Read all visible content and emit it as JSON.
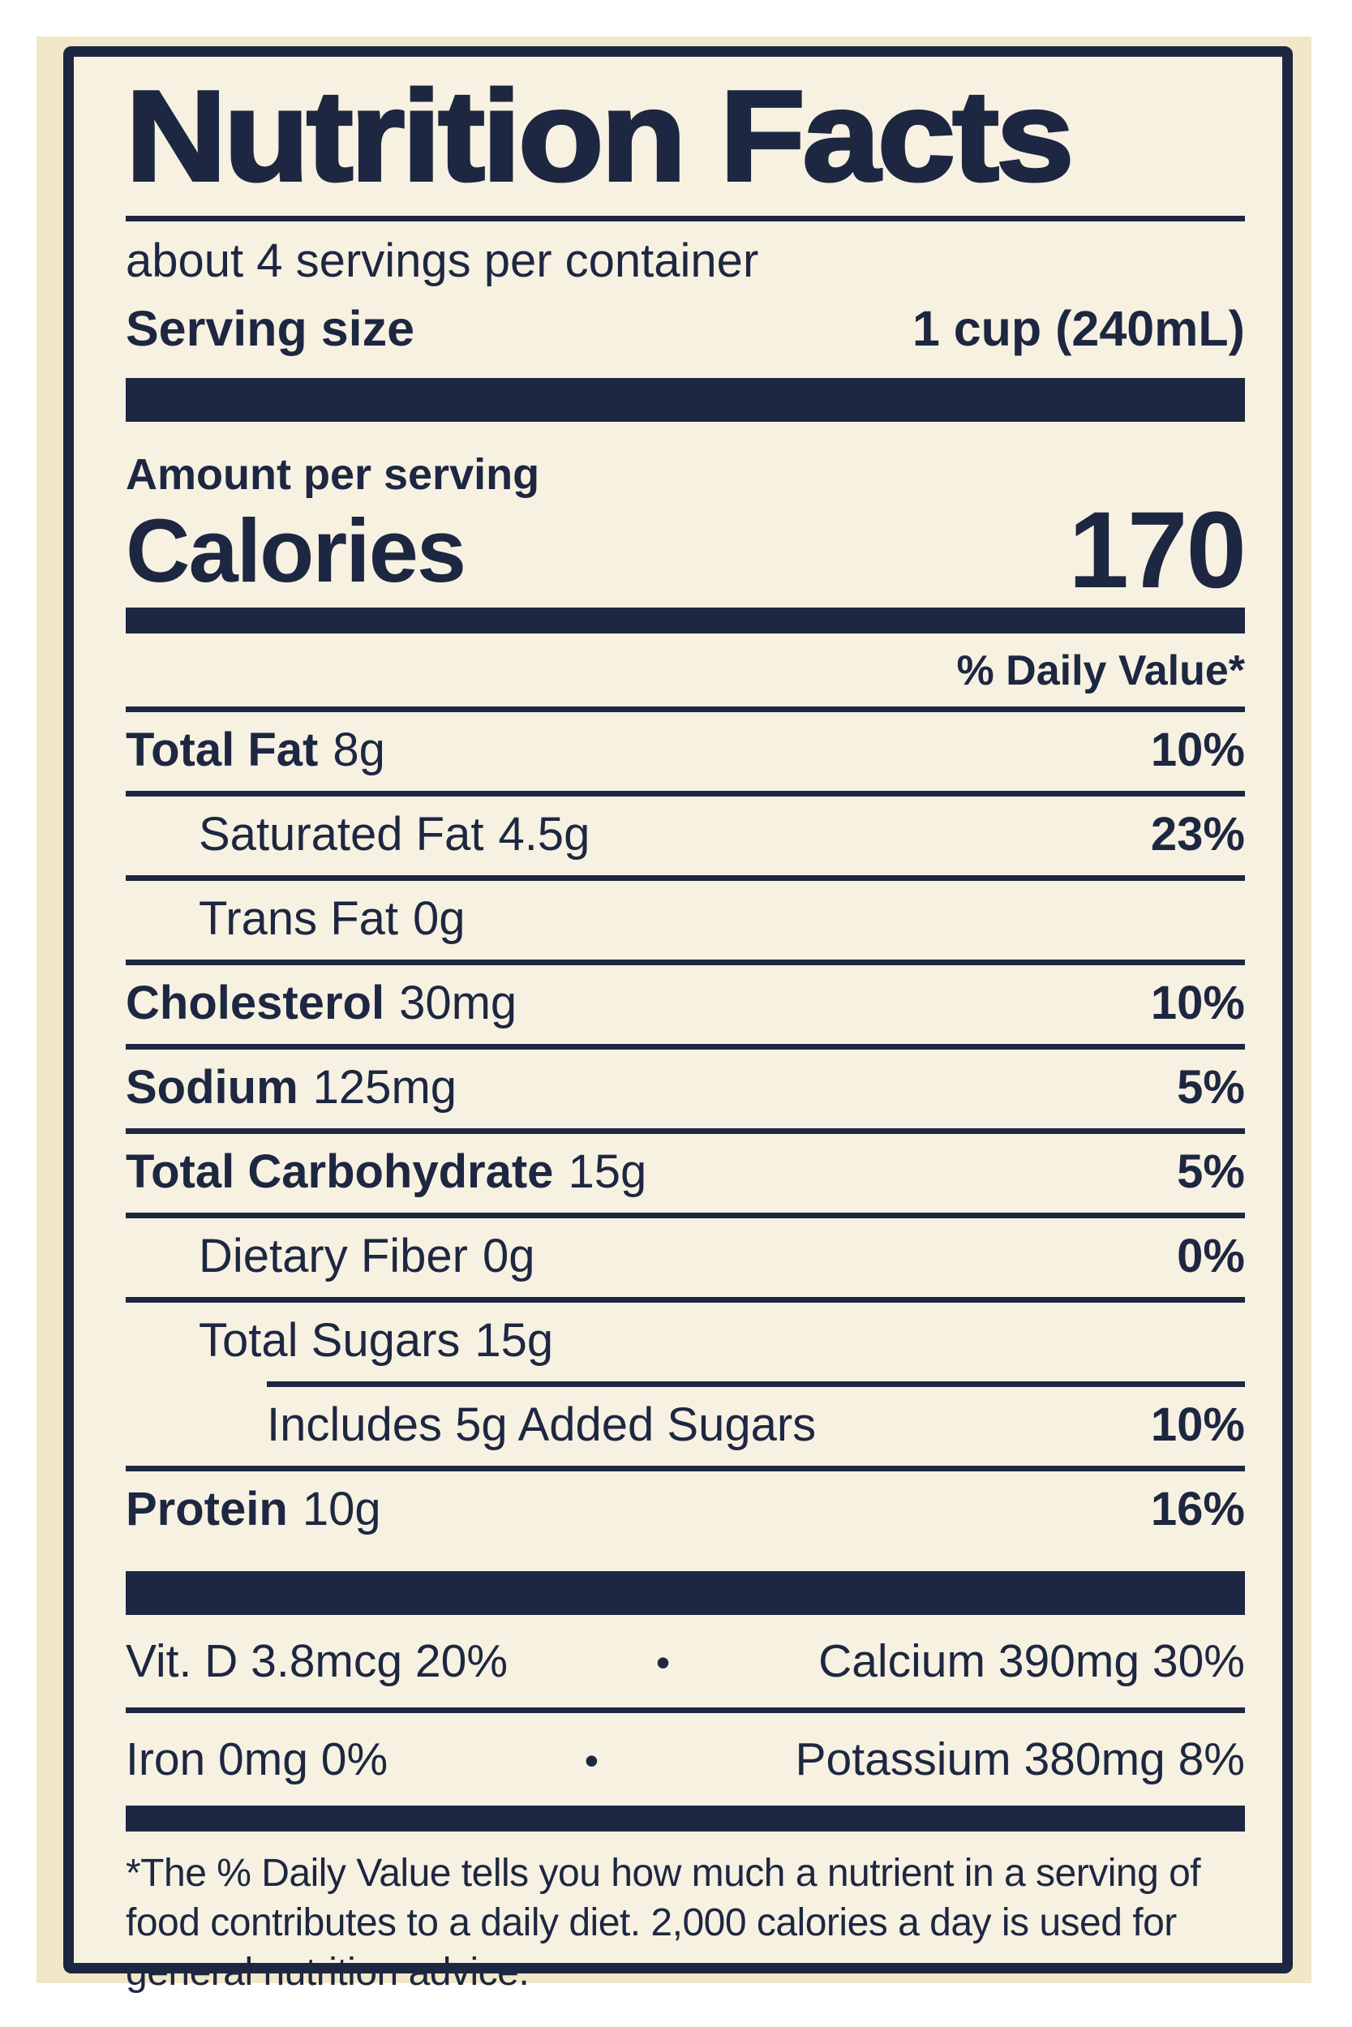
{
  "colors": {
    "navy": "#1e2741",
    "cream": "#f1e7c9",
    "label_bg": "#f7f1e2",
    "photo_white": "#ffffff"
  },
  "label": {
    "title": "Nutrition Facts",
    "servings_per_container": "about 4 servings per container",
    "serving_size_label": "Serving size",
    "serving_size_value": "1 cup (240mL)",
    "amount_per_serving": "Amount per serving",
    "calories_label": "Calories",
    "calories_value": "170",
    "daily_value_header": "% Daily Value*",
    "rows": [
      {
        "name": "Total Fat",
        "amount": "8g",
        "dv": "10%"
      },
      {
        "name": "Saturated Fat",
        "amount": "4.5g",
        "dv": "23%"
      },
      {
        "name": "Trans Fat",
        "amount": "0g",
        "dv": ""
      },
      {
        "name": "Cholesterol",
        "amount": "30mg",
        "dv": "10%"
      },
      {
        "name": "Sodium",
        "amount": "125mg",
        "dv": "5%"
      },
      {
        "name": "Total Carbohydrate",
        "amount": "15g",
        "dv": "5%"
      },
      {
        "name": "Dietary Fiber",
        "amount": "0g",
        "dv": "0%"
      },
      {
        "name": "Total Sugars",
        "amount": "15g",
        "dv": ""
      },
      {
        "name": "Includes 5g Added Sugars",
        "amount": "",
        "dv": "10%"
      },
      {
        "name": "Protein",
        "amount": "10g",
        "dv": "16%"
      }
    ],
    "bullet": "•",
    "micronutrients": [
      {
        "left": "Vit. D 3.8mcg 20%",
        "right": "Calcium 390mg 30%"
      },
      {
        "left": "Iron 0mg 0%",
        "right": "Potassium 380mg 8%"
      }
    ],
    "footnote": "*The % Daily Value tells you how much a nutrient in a serving of food contributes to a daily diet. 2,000 calories a day is used for general nutrition advice."
  }
}
